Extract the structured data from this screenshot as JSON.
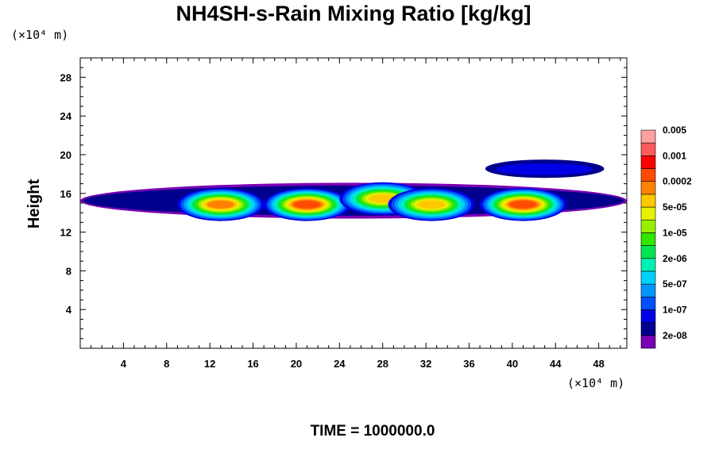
{
  "chart_data": {
    "type": "heatmap",
    "title": "NH4SH-s-Rain Mixing Ratio [kg/kg]",
    "xlabel": "",
    "ylabel": "Height",
    "x_unit_label": "(×10⁴ m)",
    "y_unit_label": "(×10⁴ m)",
    "xlim": [
      0,
      50.6
    ],
    "ylim": [
      0,
      30
    ],
    "x_ticks": [
      4,
      8,
      12,
      16,
      20,
      24,
      28,
      32,
      36,
      40,
      44,
      48
    ],
    "y_ticks": [
      4,
      8,
      12,
      16,
      20,
      24,
      28
    ],
    "time_label": "TIME = 1000000.0",
    "colorbar": {
      "colors": [
        "#7a00b4",
        "#00008c",
        "#0000e6",
        "#0050ff",
        "#0096ff",
        "#00d2ff",
        "#00f0b4",
        "#00e650",
        "#32e600",
        "#96f000",
        "#e6f000",
        "#ffc800",
        "#ff8200",
        "#ff4b00",
        "#ff0000",
        "#ff5a5a",
        "#ffa0a0"
      ],
      "labels": [
        "2e-08",
        "1e-07",
        "5e-07",
        "2e-06",
        "1e-05",
        "5e-05",
        "0.0002",
        "0.001",
        "0.005"
      ]
    },
    "layer": {
      "base": 13.5,
      "top": 17.0
    },
    "cores": [
      {
        "x": 13,
        "level": 12
      },
      {
        "x": 21,
        "level": 13
      },
      {
        "x": 28,
        "level": 11
      },
      {
        "x": 32.5,
        "level": 11
      },
      {
        "x": 41,
        "level": 13
      }
    ]
  }
}
